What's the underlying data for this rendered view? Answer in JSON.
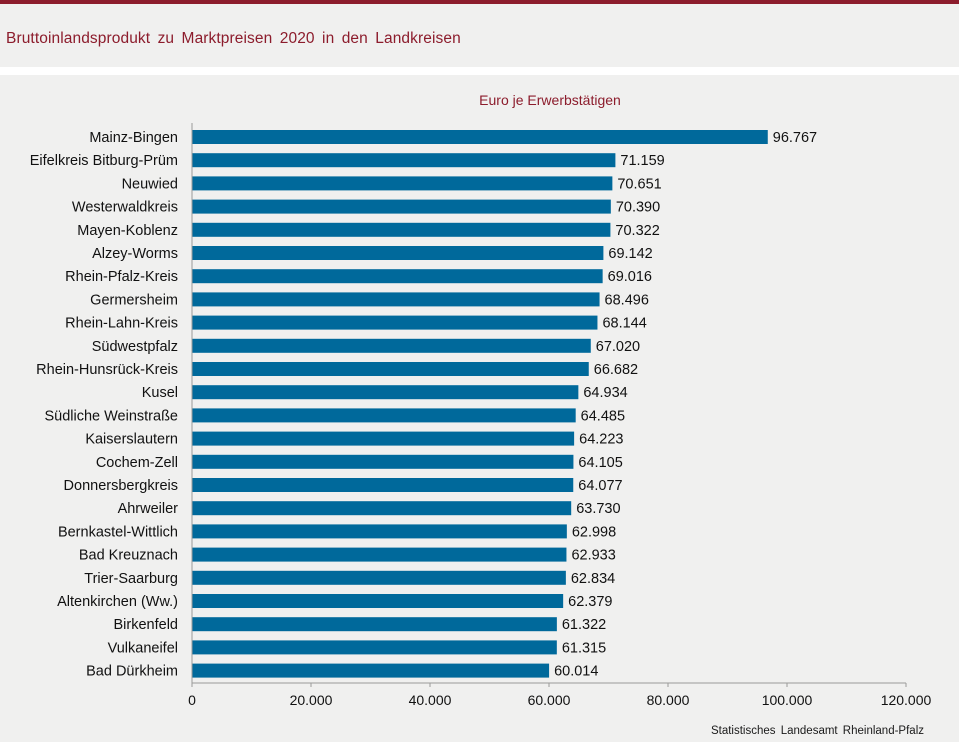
{
  "header": {
    "title": "Bruttoinlandsprodukt  zu Marktpreisen  2020  in den Landkreisen"
  },
  "source": "Statistisches Landesamt  Rheinland-Pfalz",
  "colors": {
    "bar": "#00699b",
    "brand": "#8c1c2c",
    "background": "#f0f0ef"
  },
  "chart_data": {
    "type": "bar",
    "orientation": "horizontal",
    "title": "Euro je Erwerbstätigen",
    "xlabel": "",
    "ylabel": "",
    "xlim": [
      0,
      120000
    ],
    "grid": false,
    "categories": [
      "Mainz-Bingen",
      "Eifelkreis Bitburg-Prüm",
      "Neuwied",
      "Westerwaldkreis",
      "Mayen-Koblenz",
      "Alzey-Worms",
      "Rhein-Pfalz-Kreis",
      "Germersheim",
      "Rhein-Lahn-Kreis",
      "Südwestpfalz",
      "Rhein-Hunsrück-Kreis",
      "Kusel",
      "Südliche Weinstraße",
      "Kaiserslautern",
      "Cochem-Zell",
      "Donnersbergkreis",
      "Ahrweiler",
      "Bernkastel-Wittlich",
      "Bad Kreuznach",
      "Trier-Saarburg",
      "Altenkirchen (Ww.)",
      "Birkenfeld",
      "Vulkaneifel",
      "Bad Dürkheim"
    ],
    "values": [
      96767,
      71159,
      70651,
      70390,
      70322,
      69142,
      69016,
      68496,
      68144,
      67020,
      66682,
      64934,
      64485,
      64223,
      64105,
      64077,
      63730,
      62998,
      62933,
      62834,
      62379,
      61322,
      61315,
      60014
    ],
    "value_labels": [
      "96.767",
      "71.159",
      "70.651",
      "70.390",
      "70.322",
      "69.142",
      "69.016",
      "68.496",
      "68.144",
      "67.020",
      "66.682",
      "64.934",
      "64.485",
      "64.223",
      "64.105",
      "64.077",
      "63.730",
      "62.998",
      "62.933",
      "62.834",
      "62.379",
      "61.322",
      "61.315",
      "60.014"
    ],
    "ticks": [
      0,
      20000,
      40000,
      60000,
      80000,
      100000,
      120000
    ],
    "tick_labels": [
      "0",
      "20.000",
      "40.000",
      "60.000",
      "80.000",
      "100.000",
      "120.000"
    ]
  }
}
